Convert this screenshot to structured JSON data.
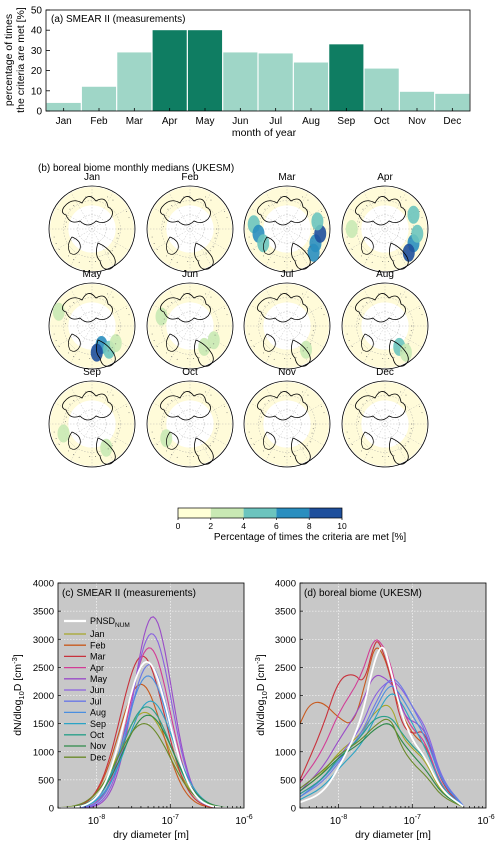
{
  "panel_a": {
    "label": "(a) SMEAR II (measurements)",
    "ylabel_line1": "percentage of times",
    "ylabel_line2": "the criteria are met [%]",
    "xlabel": "month of year",
    "colors": {
      "light": "#9fd6c7",
      "dark": "#0f7d62"
    }
  },
  "panel_b": {
    "label": "(b) boreal biome monthly medians (UKESM)",
    "map_titles": [
      "Jan",
      "Feb",
      "Mar",
      "Apr",
      "May",
      "Jun",
      "Jul",
      "Aug",
      "Sep",
      "Oct",
      "Nov",
      "Dec"
    ],
    "colorbar": {
      "ticks": [
        "0",
        "2",
        "4",
        "6",
        "8",
        "10"
      ],
      "colors": [
        "#ffffd6",
        "#c9e9b4",
        "#6cc4be",
        "#2a8ebf",
        "#1e4f9c"
      ],
      "label": "Percentage of times the criteria are met [%]"
    }
  },
  "panel_c": {
    "label": "(c) SMEAR II (measurements)",
    "legend_pnsd_main": "PNSD",
    "legend_pnsd_sub": "NUM"
  },
  "panel_d": {
    "label": "(d) boreal biome (UKESM)"
  },
  "dist_axes": {
    "ylabel_main": "dN/dlog",
    "ylabel_sub": "10",
    "ylabel_tail": "D [cm",
    "ylabel_sup": "-3",
    "ylabel_close": "]",
    "xlabel": "dry diameter [m]",
    "xticks": [
      {
        "b": "10",
        "e": "-8"
      },
      {
        "b": "10",
        "e": "-7"
      },
      {
        "b": "10",
        "e": "-6"
      }
    ],
    "yticks": [
      "0",
      "500",
      "1000",
      "1500",
      "2000",
      "2500",
      "3000",
      "3500",
      "4000"
    ]
  },
  "chart_data": [
    {
      "type": "bar",
      "title": "(a) SMEAR II (measurements)",
      "categories": [
        "Jan",
        "Feb",
        "Mar",
        "Apr",
        "May",
        "Jun",
        "Jul",
        "Aug",
        "Sep",
        "Oct",
        "Nov",
        "Dec"
      ],
      "values": [
        4,
        12,
        29,
        40,
        40,
        29,
        28.5,
        24,
        33,
        21,
        9.5,
        8.5
      ],
      "highlighted": [
        false,
        false,
        false,
        true,
        true,
        false,
        false,
        false,
        true,
        false,
        false,
        false
      ],
      "xlabel": "month of year",
      "ylabel": "percentage of times the criteria are met [%]",
      "ylim": [
        0,
        50
      ],
      "yticks": [
        0,
        10,
        20,
        30,
        40,
        50
      ]
    },
    {
      "type": "line",
      "title": "(c) SMEAR II (measurements)",
      "xscale": "log",
      "xlim": [
        3e-09,
        1e-06
      ],
      "ylim": [
        0,
        4000
      ],
      "xlabel": "dry diameter [m]",
      "ylabel": "dN/dlog10D [cm-3]",
      "legend": "top-left",
      "series": [
        {
          "name": "PNSD_NUM",
          "color": "#ffffff",
          "peak_d": 4.8e-08,
          "peak": 2600,
          "width": 0.3
        },
        {
          "name": "Jan",
          "color": "#a6a62a",
          "peak_d": 4.5e-08,
          "peak": 1700,
          "width": 0.34
        },
        {
          "name": "Feb",
          "color": "#c85a1e",
          "peak_d": 4e-08,
          "peak": 2200,
          "width": 0.3
        },
        {
          "name": "Mar",
          "color": "#c8323c",
          "peak_d": 4.2e-08,
          "peak": 2700,
          "width": 0.3
        },
        {
          "name": "Apr",
          "color": "#d23c96",
          "peak_d": 5.2e-08,
          "peak": 2850,
          "width": 0.28
        },
        {
          "name": "May",
          "color": "#9a4cc8",
          "peak_d": 5.8e-08,
          "peak": 3400,
          "width": 0.26
        },
        {
          "name": "Jun",
          "color": "#8a60e0",
          "peak_d": 5.6e-08,
          "peak": 3100,
          "width": 0.27
        },
        {
          "name": "Jul",
          "color": "#6a78e6",
          "peak_d": 5.2e-08,
          "peak": 2550,
          "width": 0.28
        },
        {
          "name": "Aug",
          "color": "#4a8ee0",
          "peak_d": 5e-08,
          "peak": 2350,
          "width": 0.3
        },
        {
          "name": "Sep",
          "color": "#2aa4c6",
          "peak_d": 5.4e-08,
          "peak": 1900,
          "width": 0.32
        },
        {
          "name": "Oct",
          "color": "#2aa08a",
          "peak_d": 4.8e-08,
          "peak": 1800,
          "width": 0.33
        },
        {
          "name": "Nov",
          "color": "#2e8a4a",
          "peak_d": 5e-08,
          "peak": 1650,
          "width": 0.34
        },
        {
          "name": "Dec",
          "color": "#6a8a2a",
          "peak_d": 4.4e-08,
          "peak": 1500,
          "width": 0.35
        }
      ]
    },
    {
      "type": "line",
      "title": "(d) boreal biome (UKESM)",
      "xscale": "log",
      "xlim": [
        3e-09,
        1e-06
      ],
      "ylim": [
        0,
        4000
      ],
      "xlabel": "dry diameter [m]",
      "ylabel": "dN/dlog10D [cm-3]",
      "series": [
        {
          "name": "PNSD_NUM",
          "color": "#ffffff",
          "points": [
            [
              3e-09,
              100
            ],
            [
              6e-09,
              250
            ],
            [
              1e-08,
              700
            ],
            [
              2e-08,
              1500
            ],
            [
              3e-08,
              2600
            ],
            [
              4e-08,
              2950
            ],
            [
              5e-08,
              2500
            ],
            [
              7e-08,
              1700
            ],
            [
              1e-07,
              1200
            ],
            [
              1.5e-07,
              900
            ],
            [
              2.5e-07,
              300
            ],
            [
              5e-07,
              20
            ]
          ]
        },
        {
          "name": "Jan",
          "color": "#a6a62a",
          "points": [
            [
              3e-09,
              300
            ],
            [
              6e-09,
              600
            ],
            [
              1e-08,
              1000
            ],
            [
              2e-08,
              1300
            ],
            [
              3e-08,
              1700
            ],
            [
              5e-08,
              1900
            ],
            [
              7e-08,
              1300
            ],
            [
              1e-07,
              1050
            ],
            [
              1.5e-07,
              850
            ],
            [
              2.5e-07,
              250
            ],
            [
              5e-07,
              15
            ]
          ]
        },
        {
          "name": "Feb",
          "color": "#c85a1e",
          "points": [
            [
              3e-09,
              1500
            ],
            [
              4e-09,
              1850
            ],
            [
              6e-09,
              1900
            ],
            [
              1e-08,
              1600
            ],
            [
              1.6e-08,
              1450
            ],
            [
              2.5e-08,
              2400
            ],
            [
              3.2e-08,
              2950
            ],
            [
              4.5e-08,
              2600
            ],
            [
              6e-08,
              1900
            ],
            [
              1e-07,
              1300
            ],
            [
              1.6e-07,
              1100
            ],
            [
              2.5e-07,
              300
            ],
            [
              5e-07,
              20
            ]
          ]
        },
        {
          "name": "Mar",
          "color": "#c8323c",
          "points": [
            [
              3e-09,
              500
            ],
            [
              6e-09,
              1400
            ],
            [
              1e-08,
              2300
            ],
            [
              1.6e-08,
              2400
            ],
            [
              2.2e-08,
              2200
            ],
            [
              3e-08,
              2900
            ],
            [
              3.5e-08,
              3000
            ],
            [
              5e-08,
              2400
            ],
            [
              7e-08,
              1500
            ],
            [
              1e-07,
              1300
            ],
            [
              1.5e-07,
              1400
            ],
            [
              2.5e-07,
              400
            ],
            [
              5e-07,
              20
            ]
          ]
        },
        {
          "name": "Apr",
          "color": "#d23c96",
          "points": [
            [
              3e-09,
              450
            ],
            [
              6e-09,
              1000
            ],
            [
              1e-08,
              1700
            ],
            [
              2e-08,
              2300
            ],
            [
              3e-08,
              3050
            ],
            [
              4e-08,
              2900
            ],
            [
              5e-08,
              2600
            ],
            [
              7e-08,
              1800
            ],
            [
              1e-07,
              1400
            ],
            [
              1.5e-07,
              1200
            ],
            [
              2.5e-07,
              350
            ],
            [
              5e-07,
              20
            ]
          ]
        },
        {
          "name": "May",
          "color": "#9a4cc8",
          "points": [
            [
              3e-09,
              300
            ],
            [
              6e-09,
              700
            ],
            [
              1e-08,
              1200
            ],
            [
              2e-08,
              1800
            ],
            [
              3e-08,
              2400
            ],
            [
              4.5e-08,
              2300
            ],
            [
              6e-08,
              2100
            ],
            [
              8e-08,
              1600
            ],
            [
              1.2e-07,
              1500
            ],
            [
              1.6e-07,
              1300
            ],
            [
              2.5e-07,
              450
            ],
            [
              5e-07,
              25
            ]
          ]
        },
        {
          "name": "Jun",
          "color": "#8a60e0",
          "points": [
            [
              3e-09,
              250
            ],
            [
              6e-09,
              500
            ],
            [
              1e-08,
              900
            ],
            [
              2e-08,
              1400
            ],
            [
              3e-08,
              2000
            ],
            [
              5e-08,
              2300
            ],
            [
              7e-08,
              2150
            ],
            [
              1e-07,
              1800
            ],
            [
              1.6e-07,
              1400
            ],
            [
              2.5e-07,
              500
            ],
            [
              5e-07,
              30
            ]
          ]
        },
        {
          "name": "Jul",
          "color": "#6a78e6",
          "points": [
            [
              3e-09,
              200
            ],
            [
              6e-09,
              450
            ],
            [
              1e-08,
              800
            ],
            [
              2e-08,
              1300
            ],
            [
              3e-08,
              1800
            ],
            [
              5e-08,
              2350
            ],
            [
              7e-08,
              2200
            ],
            [
              1e-07,
              1800
            ],
            [
              1.6e-07,
              1300
            ],
            [
              2.5e-07,
              500
            ],
            [
              5e-07,
              30
            ]
          ]
        },
        {
          "name": "Aug",
          "color": "#4a8ee0",
          "points": [
            [
              3e-09,
              200
            ],
            [
              6e-09,
              500
            ],
            [
              1e-08,
              850
            ],
            [
              2e-08,
              1250
            ],
            [
              3e-08,
              1700
            ],
            [
              5e-08,
              2250
            ],
            [
              7e-08,
              2000
            ],
            [
              1e-07,
              1650
            ],
            [
              1.6e-07,
              1200
            ],
            [
              2.5e-07,
              450
            ],
            [
              5e-07,
              25
            ]
          ]
        },
        {
          "name": "Sep",
          "color": "#2aa4c6",
          "points": [
            [
              3e-09,
              150
            ],
            [
              6e-09,
              350
            ],
            [
              1e-08,
              700
            ],
            [
              2e-08,
              1100
            ],
            [
              3e-08,
              1550
            ],
            [
              5e-08,
              2100
            ],
            [
              7e-08,
              1900
            ],
            [
              1e-07,
              1500
            ],
            [
              1.6e-07,
              1000
            ],
            [
              2.5e-07,
              350
            ],
            [
              5e-07,
              20
            ]
          ]
        },
        {
          "name": "Oct",
          "color": "#2aa08a",
          "points": [
            [
              3e-09,
              250
            ],
            [
              6e-09,
              500
            ],
            [
              1e-08,
              900
            ],
            [
              2e-08,
              1250
            ],
            [
              3e-08,
              1600
            ],
            [
              5e-08,
              1650
            ],
            [
              7e-08,
              1350
            ],
            [
              1e-07,
              1100
            ],
            [
              1.6e-07,
              850
            ],
            [
              2.5e-07,
              300
            ],
            [
              5e-07,
              20
            ]
          ]
        },
        {
          "name": "Nov",
          "color": "#2e8a4a",
          "points": [
            [
              3e-09,
              300
            ],
            [
              6e-09,
              600
            ],
            [
              1e-08,
              900
            ],
            [
              2e-08,
              1150
            ],
            [
              3e-08,
              1400
            ],
            [
              5e-08,
              1550
            ],
            [
              7e-08,
              1200
            ],
            [
              1e-07,
              950
            ],
            [
              1.6e-07,
              650
            ],
            [
              2.5e-07,
              250
            ],
            [
              5e-07,
              15
            ]
          ]
        },
        {
          "name": "Dec",
          "color": "#6a8a2a",
          "points": [
            [
              3e-09,
              350
            ],
            [
              6e-09,
              650
            ],
            [
              1e-08,
              950
            ],
            [
              2e-08,
              1200
            ],
            [
              3e-08,
              1450
            ],
            [
              5e-08,
              1650
            ],
            [
              7e-08,
              1100
            ],
            [
              1e-07,
              800
            ],
            [
              1.6e-07,
              550
            ],
            [
              2.5e-07,
              200
            ],
            [
              5e-07,
              15
            ]
          ]
        }
      ]
    }
  ]
}
